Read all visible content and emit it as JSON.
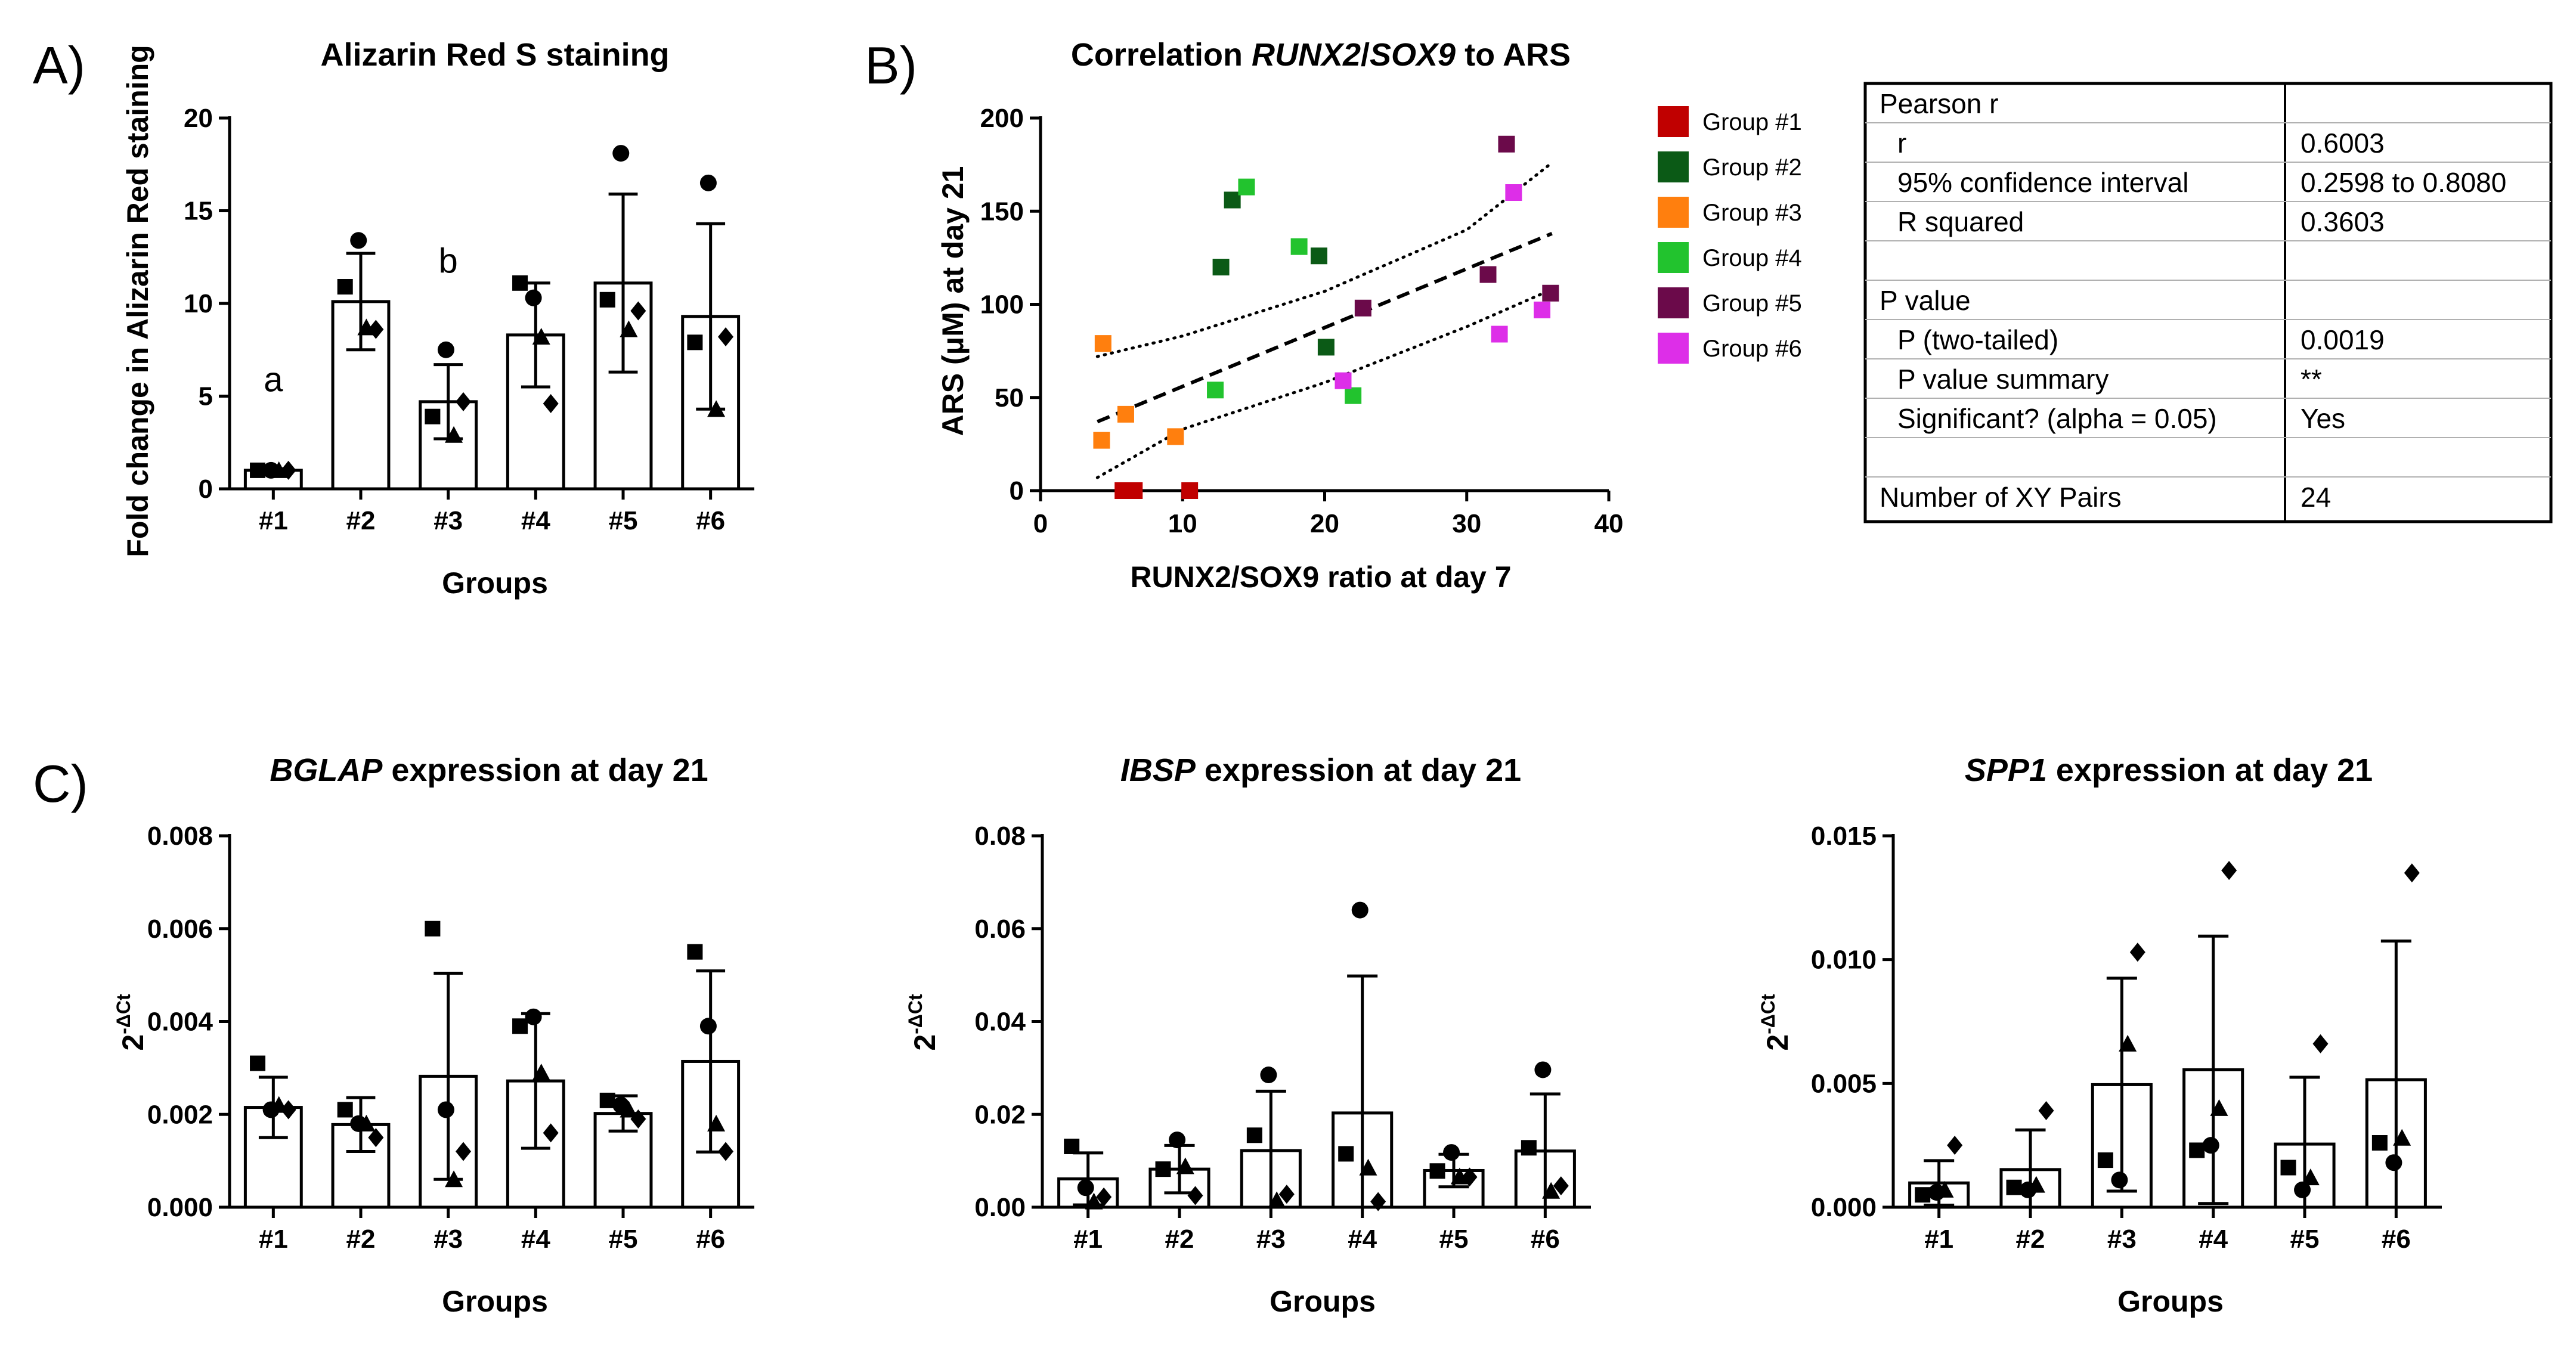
{
  "panels": {
    "a": "A)",
    "b": "B)",
    "c": "C)"
  },
  "chart_data": [
    {
      "id": "ars",
      "type": "bar",
      "title": "Alizarin Red S staining",
      "xlabel": "Groups",
      "ylabel": "Fold change in Alizarin Red staining",
      "categories": [
        "#1",
        "#2",
        "#3",
        "#4",
        "#5",
        "#6"
      ],
      "values": [
        1.0,
        10.1,
        4.7,
        8.3,
        11.1,
        9.3
      ],
      "error": [
        0.08,
        2.6,
        2.0,
        2.8,
        4.8,
        5.0
      ],
      "points": [
        [
          1,
          1,
          1,
          1
        ],
        [
          10.9,
          13.4,
          8.7,
          8.6
        ],
        [
          3.9,
          7.5,
          2.9,
          4.7
        ],
        [
          11.1,
          10.3,
          8.2,
          4.6
        ],
        [
          10.2,
          18.1,
          8.6,
          9.6
        ],
        [
          7.9,
          16.5,
          4.3,
          8.2
        ]
      ],
      "ylim": [
        0,
        20
      ],
      "yticks": [
        "0",
        "5",
        "10",
        "15",
        "20"
      ],
      "annotations": [
        {
          "label": "a",
          "category": 0,
          "y": 5.9
        },
        {
          "label": "b",
          "category": 2,
          "y": 12.3
        }
      ]
    },
    {
      "id": "corr",
      "type": "scatter",
      "title_parts": [
        "Correlation ",
        "RUNX2",
        "/",
        "SOX9",
        " to ARS"
      ],
      "xlabel": "RUNX2/SOX9 ratio at day 7",
      "ylabel": "ARS (μM) at day 21",
      "xlim": [
        0,
        40
      ],
      "ylim": [
        0,
        200
      ],
      "xticks": [
        "0",
        "10",
        "20",
        "30",
        "40"
      ],
      "yticks": [
        "0",
        "50",
        "100",
        "150",
        "200"
      ],
      "series": [
        {
          "name": "Group #1",
          "color": "#c00000",
          "points": [
            [
              5.8,
              0
            ],
            [
              6.3,
              0
            ],
            [
              6.6,
              0
            ],
            [
              10.5,
              0
            ]
          ]
        },
        {
          "name": "Group #2",
          "color": "#0b5a16",
          "points": [
            [
              12.7,
              120
            ],
            [
              13.5,
              156
            ],
            [
              19.6,
              126
            ],
            [
              20.1,
              77
            ]
          ]
        },
        {
          "name": "Group #3",
          "color": "#ff7f0e",
          "points": [
            [
              4.4,
              79
            ],
            [
              4.3,
              27
            ],
            [
              6.0,
              41
            ],
            [
              9.5,
              29
            ]
          ]
        },
        {
          "name": "Group #4",
          "color": "#22c32e",
          "points": [
            [
              12.3,
              54
            ],
            [
              14.5,
              163
            ],
            [
              18.2,
              131
            ],
            [
              22.0,
              51
            ]
          ]
        },
        {
          "name": "Group #5",
          "color": "#6b0a4a",
          "points": [
            [
              22.7,
              98
            ],
            [
              31.5,
              116
            ],
            [
              32.8,
              186
            ],
            [
              35.9,
              106
            ]
          ]
        },
        {
          "name": "Group #6",
          "color": "#dd2ee8",
          "points": [
            [
              21.3,
              59
            ],
            [
              32.3,
              84
            ],
            [
              33.3,
              160
            ],
            [
              35.3,
              97
            ]
          ]
        }
      ],
      "fit": {
        "x": [
          4,
          36
        ],
        "y": [
          37,
          138
        ]
      },
      "ci_upper": {
        "x": [
          4,
          10,
          20,
          30,
          36
        ],
        "y": [
          72,
          83,
          107,
          140,
          176
        ]
      },
      "ci_lower": {
        "x": [
          4,
          10,
          20,
          30,
          36
        ],
        "y": [
          7,
          33,
          58,
          88,
          108
        ]
      }
    },
    {
      "id": "bglap",
      "type": "bar",
      "title_italic": "BGLAP",
      "title_rest": " expression at day 21",
      "xlabel": "Groups",
      "ylabel": "2-ΔCt",
      "categories": [
        "#1",
        "#2",
        "#3",
        "#4",
        "#5",
        "#6"
      ],
      "values": [
        0.00215,
        0.00178,
        0.00282,
        0.00272,
        0.00202,
        0.00314
      ],
      "error": [
        0.00065,
        0.00058,
        0.00222,
        0.00145,
        0.00038,
        0.00195
      ],
      "points": [
        [
          0.0031,
          0.0021,
          0.0022,
          0.0021
        ],
        [
          0.0021,
          0.0018,
          0.0018,
          0.0015
        ],
        [
          0.006,
          0.0021,
          0.0006,
          0.0012
        ],
        [
          0.0039,
          0.0041,
          0.0029,
          0.0016
        ],
        [
          0.0023,
          0.0022,
          0.0021,
          0.0019
        ],
        [
          0.0055,
          0.0039,
          0.0018,
          0.0012
        ]
      ],
      "ylim": [
        0,
        0.008
      ],
      "yticks": [
        "0.000",
        "0.002",
        "0.004",
        "0.006",
        "0.008"
      ]
    },
    {
      "id": "ibsp",
      "type": "bar",
      "title_italic": "IBSP",
      "title_rest": " expression at day 21",
      "xlabel": "Groups",
      "ylabel": "2-ΔCt",
      "categories": [
        "#1",
        "#2",
        "#3",
        "#4",
        "#5",
        "#6"
      ],
      "values": [
        0.0061,
        0.0082,
        0.0122,
        0.0203,
        0.0079,
        0.0121
      ],
      "error": [
        0.0056,
        0.0051,
        0.0128,
        0.0295,
        0.0035,
        0.0123
      ],
      "points": [
        [
          0.0131,
          0.0042,
          0.0012,
          0.0022
        ],
        [
          0.0082,
          0.0145,
          0.0088,
          0.0025
        ],
        [
          0.0155,
          0.0285,
          0.0015,
          0.0028
        ],
        [
          0.0115,
          0.064,
          0.0085,
          0.0012
        ],
        [
          0.0078,
          0.0118,
          0.0066,
          0.0065
        ],
        [
          0.0128,
          0.0296,
          0.0035,
          0.0046
        ]
      ],
      "ylim": [
        0,
        0.08
      ],
      "yticks": [
        "0.00",
        "0.02",
        "0.04",
        "0.06",
        "0.08"
      ]
    },
    {
      "id": "spp1",
      "type": "bar",
      "title_italic": "SPP1",
      "title_rest": " expression at day 21",
      "xlabel": "Groups",
      "ylabel": "2-ΔCt",
      "categories": [
        "#1",
        "#2",
        "#3",
        "#4",
        "#5",
        "#6"
      ],
      "values": [
        0.00098,
        0.00152,
        0.00495,
        0.00555,
        0.00255,
        0.00515
      ],
      "error": [
        0.0009,
        0.0016,
        0.0043,
        0.0054,
        0.0027,
        0.0056
      ],
      "points": [
        [
          0.0005,
          0.0006,
          0.0007,
          0.0025
        ],
        [
          0.0008,
          0.0007,
          0.0009,
          0.0039
        ],
        [
          0.0019,
          0.0011,
          0.0066,
          0.0103
        ],
        [
          0.0023,
          0.0025,
          0.004,
          0.0136
        ],
        [
          0.0016,
          0.0007,
          0.0012,
          0.0066
        ],
        [
          0.0026,
          0.0018,
          0.0028,
          0.0135
        ]
      ],
      "ylim": [
        0,
        0.015
      ],
      "yticks": [
        "0.000",
        "0.005",
        "0.010",
        "0.015"
      ]
    }
  ],
  "stats_table": {
    "rows": [
      {
        "label": "Pearson r",
        "value": ""
      },
      {
        "label": "  r",
        "value": "0.6003"
      },
      {
        "label": "  95% confidence interval",
        "value": "0.2598 to 0.8080"
      },
      {
        "label": "  R squared",
        "value": "0.3603"
      },
      {
        "label": "",
        "value": ""
      },
      {
        "label": "P value",
        "value": ""
      },
      {
        "label": "  P (two-tailed)",
        "value": "0.0019"
      },
      {
        "label": "  P value summary",
        "value": "**"
      },
      {
        "label": "  Significant? (alpha = 0.05)",
        "value": "Yes"
      },
      {
        "label": "",
        "value": ""
      },
      {
        "label": "Number of XY Pairs",
        "value": "24"
      }
    ]
  }
}
